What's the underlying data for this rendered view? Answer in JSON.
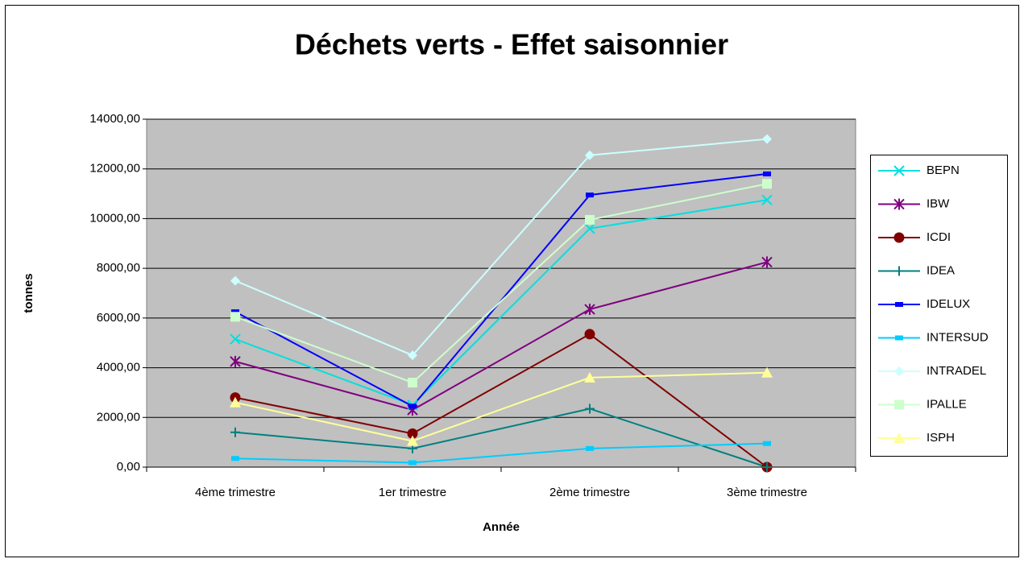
{
  "chart_data": {
    "type": "line",
    "title": "Déchets verts - Effet saisonnier",
    "xlabel": "Année",
    "ylabel": "tonnes",
    "categories": [
      "4ème trimestre",
      "1er trimestre",
      "2ème trimestre",
      "3ème trimestre"
    ],
    "ylim": [
      0,
      14000
    ],
    "yticks": [
      {
        "value": 0,
        "label": "0,00"
      },
      {
        "value": 2000,
        "label": "2000,00"
      },
      {
        "value": 4000,
        "label": "4000,00"
      },
      {
        "value": 6000,
        "label": "6000,00"
      },
      {
        "value": 8000,
        "label": "8000,00"
      },
      {
        "value": 10000,
        "label": "10000,00"
      },
      {
        "value": 12000,
        "label": "12000,00"
      },
      {
        "value": 14000,
        "label": "14000,00"
      }
    ],
    "grid": true,
    "legend": "right",
    "series": [
      {
        "name": "BEPN",
        "color": "#00e0e0",
        "marker": "x",
        "values": [
          5150,
          2500,
          9600,
          10750
        ]
      },
      {
        "name": "IBW",
        "color": "#800080",
        "marker": "star",
        "values": [
          4250,
          2300,
          6350,
          8250
        ]
      },
      {
        "name": "ICDI",
        "color": "#800000",
        "marker": "circle",
        "values": [
          2800,
          1350,
          5350,
          0
        ]
      },
      {
        "name": "IDEA",
        "color": "#008080",
        "marker": "plus",
        "values": [
          1400,
          750,
          2350,
          0
        ]
      },
      {
        "name": "IDELUX",
        "color": "#0000ff",
        "marker": "dash",
        "values": [
          6250,
          2450,
          10950,
          11800
        ]
      },
      {
        "name": "INTERSUD",
        "color": "#00ccff",
        "marker": "dash",
        "values": [
          350,
          180,
          750,
          950
        ]
      },
      {
        "name": "INTRADEL",
        "color": "#ccffff",
        "marker": "diamond",
        "values": [
          7500,
          4500,
          12550,
          13200
        ]
      },
      {
        "name": "IPALLE",
        "color": "#ccffcc",
        "marker": "square",
        "values": [
          6050,
          3400,
          9950,
          11400
        ]
      },
      {
        "name": "ISPH",
        "color": "#ffff99",
        "marker": "triangle",
        "values": [
          2600,
          1050,
          3600,
          3800
        ]
      }
    ]
  }
}
